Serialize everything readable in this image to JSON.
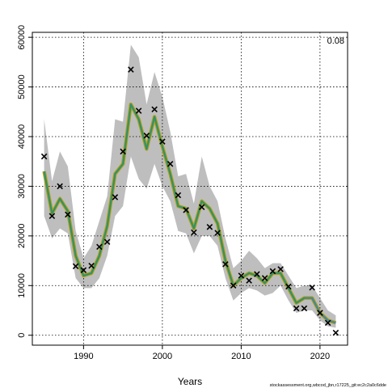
{
  "chart_data": {
    "type": "line",
    "title": "",
    "xlabel": "Years",
    "ylabel": "",
    "xlim": [
      1983.5,
      2023.5
    ],
    "ylim": [
      -2000,
      61000
    ],
    "grid": true,
    "x_ticks": [
      1990,
      2000,
      2010,
      2020
    ],
    "y_ticks": [
      0,
      10000,
      20000,
      30000,
      40000,
      50000,
      60000
    ],
    "x_tick_labels": [
      "1990",
      "2000",
      "2010",
      "2020"
    ],
    "y_tick_labels": [
      "0",
      "10000",
      "20000",
      "30000",
      "40000",
      "50000",
      "60000"
    ],
    "annotation": "0.08",
    "footer": "stockassessment.org,wbcod_jbn,r17225_git:ec2c2a0c6dde",
    "colors": {
      "band": "#bebebe",
      "line_outer": "#b8a020",
      "line_mid": "#4a9a40",
      "line_inner": "#2a8a8a",
      "line_tail": "#4a80c0",
      "marker": "#000000",
      "grid": "#000000"
    },
    "series": [
      {
        "type": "band",
        "x": [
          1985,
          1986,
          1987,
          1988,
          1989,
          1990,
          1991,
          1992,
          1993,
          1994,
          1995,
          1996,
          1997,
          1998,
          1999,
          2000,
          2001,
          2002,
          2003,
          2004,
          2005,
          2006,
          2007,
          2008,
          2009,
          2010,
          2011,
          2012,
          2013,
          2014,
          2015,
          2016,
          2017,
          2018,
          2019,
          2020,
          2021,
          2022
        ],
        "upper": [
          43500,
          31000,
          37000,
          34000,
          21000,
          15500,
          18000,
          23000,
          28000,
          43500,
          43000,
          58500,
          56000,
          46500,
          53000,
          48000,
          41000,
          32000,
          32500,
          26500,
          36000,
          30000,
          27000,
          19500,
          13500,
          15000,
          17000,
          15500,
          13500,
          14500,
          14500,
          12000,
          9500,
          10000,
          10000,
          7500,
          5000,
          4000
        ],
        "lower": [
          24000,
          19500,
          21500,
          20500,
          11500,
          9500,
          9500,
          11500,
          16000,
          24000,
          26000,
          36000,
          31500,
          29500,
          34500,
          30000,
          27000,
          21000,
          20500,
          16500,
          20000,
          20000,
          18000,
          11500,
          7000,
          8500,
          9500,
          9000,
          8000,
          8500,
          10000,
          7000,
          4500,
          5000,
          5000,
          3000,
          1800,
          1500
        ]
      },
      {
        "type": "line",
        "x": [
          1985,
          1986,
          1987,
          1988,
          1989,
          1990,
          1991,
          1992,
          1993,
          1994,
          1995,
          1996,
          1997,
          1998,
          1999,
          2000,
          2001,
          2002,
          2003,
          2004,
          2005,
          2006,
          2007,
          2008,
          2009,
          2010,
          2011,
          2012,
          2013,
          2014,
          2015,
          2016,
          2017,
          2018,
          2019,
          2020,
          2021,
          2022
        ],
        "y": [
          33000,
          24500,
          27500,
          25000,
          16000,
          12000,
          12500,
          16000,
          22000,
          32500,
          34500,
          46500,
          43500,
          37500,
          44000,
          38000,
          32500,
          26000,
          25500,
          21500,
          27000,
          25500,
          22500,
          15000,
          10000,
          11500,
          12500,
          12000,
          10500,
          12500,
          12500,
          9500,
          6500,
          7500,
          7500,
          4500,
          3000,
          2500
        ]
      },
      {
        "type": "scatter",
        "marker": "x",
        "x": [
          1985,
          1986,
          1987,
          1988,
          1989,
          1990,
          1991,
          1992,
          1993,
          1994,
          1995,
          1996,
          1997,
          1998,
          1999,
          2000,
          2001,
          2002,
          2003,
          2004,
          2005,
          2006,
          2007,
          2008,
          2009,
          2010,
          2011,
          2012,
          2013,
          2014,
          2015,
          2016,
          2017,
          2018,
          2019,
          2020,
          2021,
          2022
        ],
        "y": [
          36000,
          24000,
          30000,
          24300,
          13900,
          13100,
          14000,
          17800,
          18800,
          27800,
          37000,
          53500,
          45200,
          40200,
          45500,
          39000,
          34500,
          28200,
          25200,
          20700,
          25800,
          21800,
          20600,
          14300,
          10000,
          12000,
          11000,
          12300,
          11500,
          12900,
          13300,
          9800,
          5400,
          5400,
          9600,
          4500,
          2500,
          500
        ]
      }
    ]
  }
}
